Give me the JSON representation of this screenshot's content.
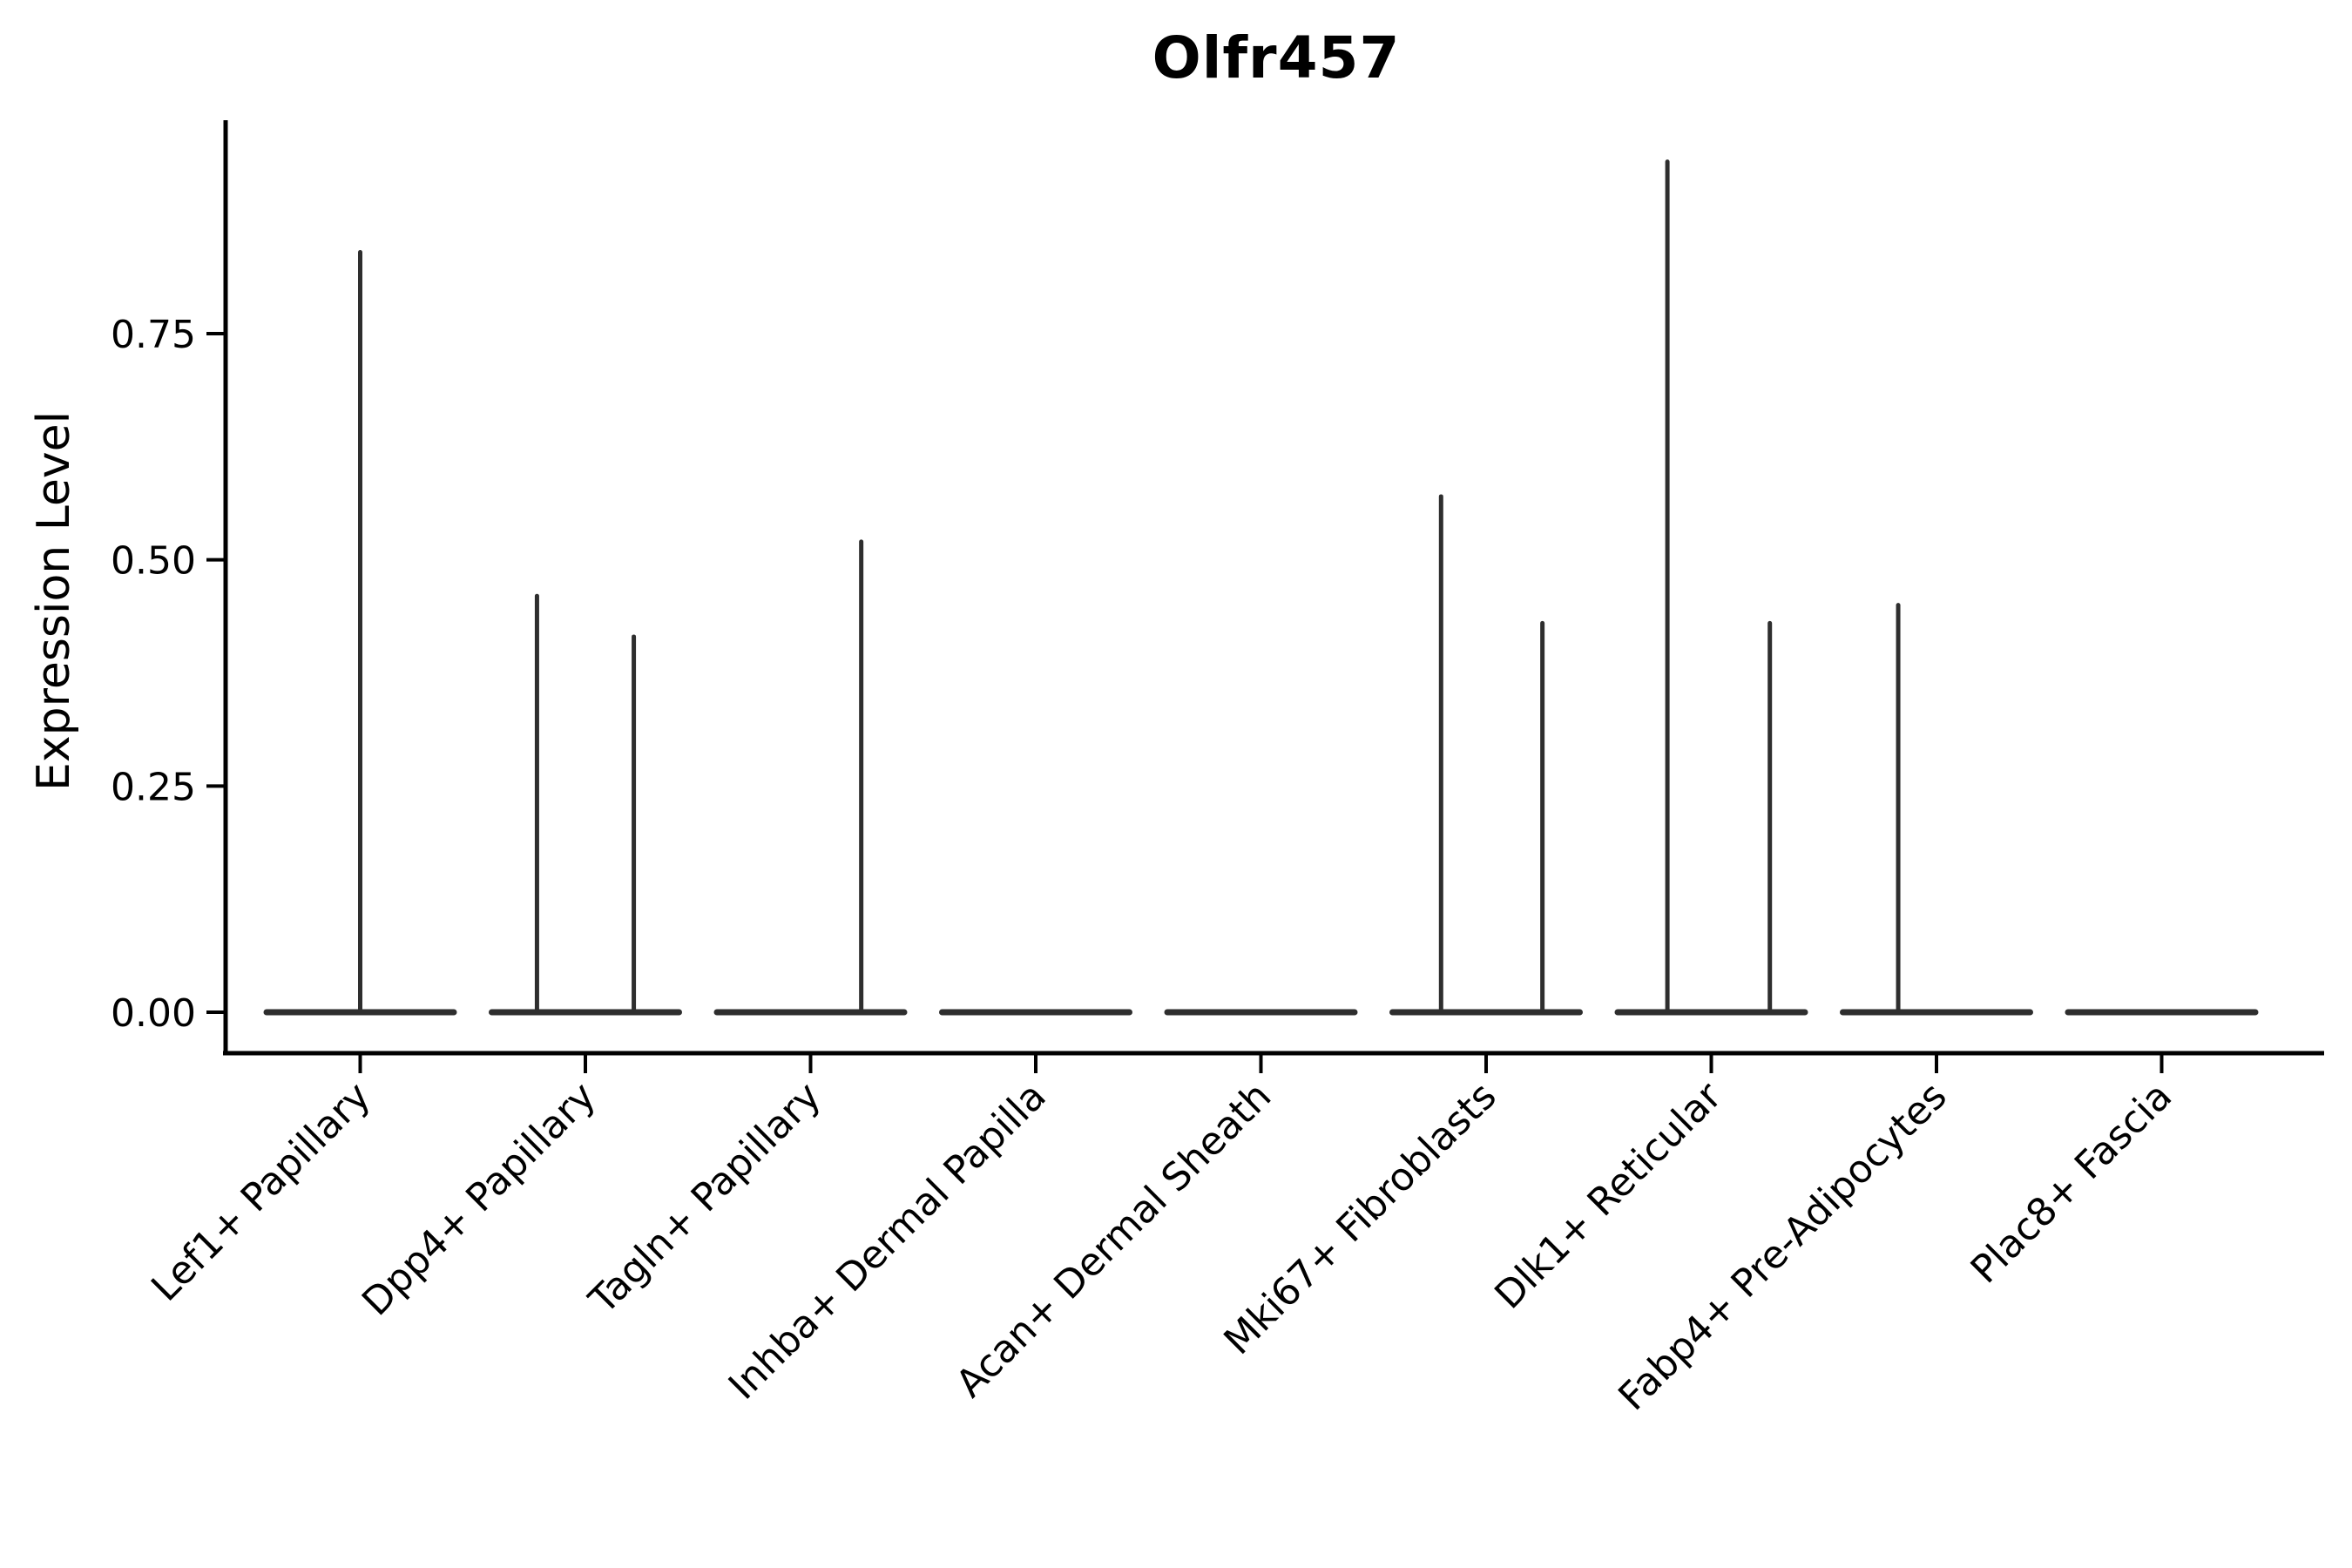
{
  "chart_data": {
    "type": "violin",
    "title": "Olfr457",
    "ylabel": "Expression Level",
    "xlabel": "",
    "grid": false,
    "legend": "none",
    "ytick_labels": [
      "0.00",
      "0.25",
      "0.50",
      "0.75"
    ],
    "ytick_values": [
      0,
      0.25,
      0.5,
      0.75
    ],
    "ylim": [
      0,
      0.99
    ],
    "categories": [
      "Lef1+ Papillary",
      "Dpp4+ Papillary",
      "Tagln+ Papillary",
      "Inhba+ Dermal Papilla",
      "Acan+ Dermal Sheath",
      "Mki67+ Fibroblasts",
      "Dlk1+ Reticular",
      "Fabp4+ Pre-Adipocytes",
      "Plac8+ Fascia"
    ],
    "violins": [
      {
        "category": "Lef1+ Papillary",
        "baseline_at_zero": true,
        "spikes": [
          {
            "offset_frac": 0,
            "value": 0.84
          }
        ]
      },
      {
        "category": "Dpp4+ Papillary",
        "baseline_at_zero": true,
        "spikes": [
          {
            "offset_frac": -0.215,
            "value": 0.46
          },
          {
            "offset_frac": 0.215,
            "value": 0.415
          }
        ]
      },
      {
        "category": "Tagln+ Papillary",
        "baseline_at_zero": true,
        "spikes": [
          {
            "offset_frac": 0.225,
            "value": 0.52
          }
        ]
      },
      {
        "category": "Inhba+ Dermal Papilla",
        "baseline_at_zero": true,
        "spikes": []
      },
      {
        "category": "Acan+ Dermal Sheath",
        "baseline_at_zero": true,
        "spikes": []
      },
      {
        "category": "Mki67+ Fibroblasts",
        "baseline_at_zero": true,
        "spikes": [
          {
            "offset_frac": -0.2,
            "value": 0.57
          },
          {
            "offset_frac": 0.25,
            "value": 0.43
          }
        ]
      },
      {
        "category": "Dlk1+ Reticular",
        "baseline_at_zero": true,
        "spikes": [
          {
            "offset_frac": -0.195,
            "value": 0.94
          },
          {
            "offset_frac": 0.26,
            "value": 0.43
          }
        ]
      },
      {
        "category": "Fabp4+ Pre-Adipocytes",
        "baseline_at_zero": true,
        "spikes": [
          {
            "offset_frac": -0.17,
            "value": 0.45
          }
        ]
      },
      {
        "category": "Plac8+ Fascia",
        "baseline_at_zero": true,
        "spikes": []
      }
    ],
    "colors": {
      "violin": "#2e2e2e",
      "axis": "#000000",
      "text": "#000000",
      "background": "#ffffff"
    }
  }
}
